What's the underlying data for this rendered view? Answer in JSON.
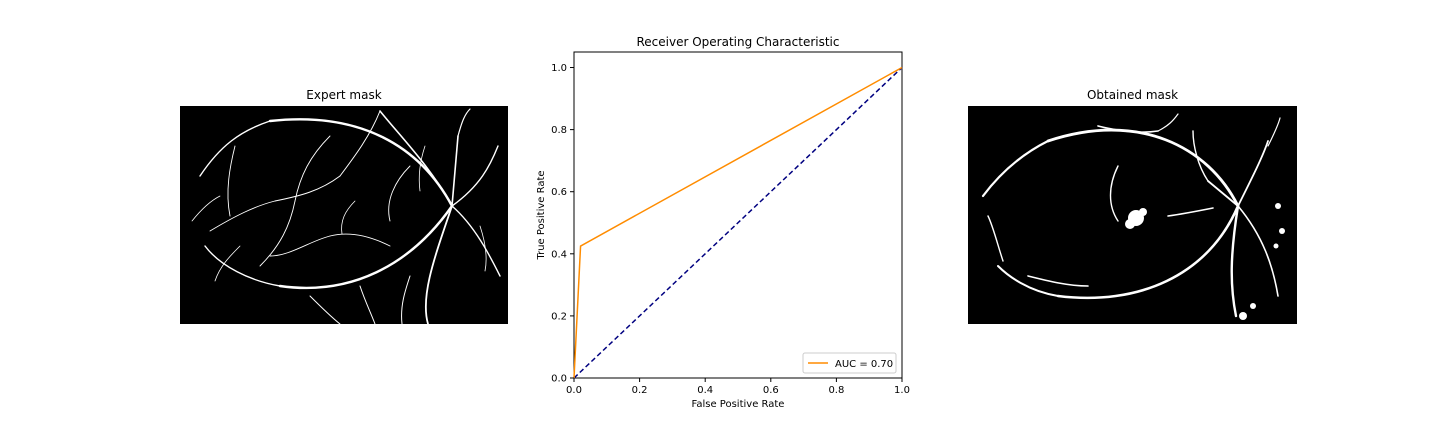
{
  "panels": {
    "left_title": "Expert mask",
    "right_title": "Obtained mask"
  },
  "chart_data": {
    "type": "line",
    "title": "Receiver Operating Characteristic",
    "xlabel": "False Positive Rate",
    "ylabel": "True Positive Rate",
    "xlim": [
      0,
      1
    ],
    "ylim": [
      0,
      1.05
    ],
    "xticks": [
      "0.0",
      "0.2",
      "0.4",
      "0.6",
      "0.8",
      "1.0"
    ],
    "yticks": [
      "0.0",
      "0.2",
      "0.4",
      "0.6",
      "0.8",
      "1.0"
    ],
    "grid": false,
    "legend_position": "lower-right",
    "series": [
      {
        "name": "AUC = 0.70",
        "color": "#ff8c00",
        "style": "solid",
        "x": [
          0,
          0.02,
          1
        ],
        "y": [
          0,
          0.425,
          1
        ]
      },
      {
        "color": "#000080",
        "style": "dashed",
        "x": [
          0,
          1
        ],
        "y": [
          0,
          1
        ]
      }
    ]
  }
}
